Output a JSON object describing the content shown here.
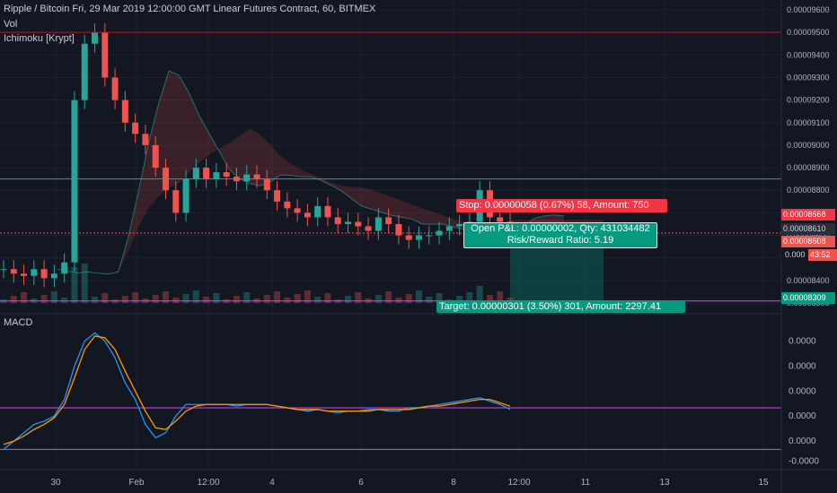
{
  "header": {
    "title": "Ripple / Bitcoin Fri, 29 Mar 2019 12:00:00 GMT Linear Futures Contract, 60, BITMEX",
    "vol_label": "Vol",
    "ichimoku_label": "Ichimoku [Krypt]",
    "macd_label": "MACD"
  },
  "price_axis": {
    "ticks": [
      "0.00009600",
      "0.00009500",
      "0.00009400",
      "0.00009300",
      "0.00009200",
      "0.00009100",
      "0.00009000",
      "0.00008900",
      "0.00008800",
      "0.00008700",
      "0.00008600",
      "0.00008500",
      "0.00008400",
      "0.00008300"
    ]
  },
  "price_labels": {
    "stop": "0.00008668",
    "last": "0.00008610",
    "current": "0.00008608",
    "countdown": "43:52",
    "target": "0.00008309",
    "partial": "0.000"
  },
  "position": {
    "stop_text": "Stop: 0.00000058 (0.67%) 58, Amount: 750",
    "pnl_text": "Open P&L: 0.00000002, Qty: 431034482",
    "rr_text": "Risk/Reward Ratio: 5.19",
    "target_text": "Target: 0.00000301 (3.50%) 301, Amount: 2297.41"
  },
  "macd_axis": {
    "ticks": [
      "0.0000",
      "0.0000",
      "0.0000",
      "0.0000",
      "0.0000",
      "-0.0000"
    ]
  },
  "time_axis": {
    "ticks": [
      "30",
      "Feb",
      "12:00",
      "4",
      "6",
      "8",
      "12:00",
      "11",
      "13",
      "15"
    ]
  },
  "colors": {
    "bg": "#131722",
    "up": "#26a69a",
    "down": "#ef5350",
    "red_line": "#b71c1c",
    "teal_line": "#26a69a",
    "magenta": "#e040fb",
    "macd": "#2196f3",
    "signal": "#ff9800",
    "stop_box": "#f23645",
    "target_box": "#089981"
  },
  "chart_data": {
    "type": "candlestick",
    "title": "Ripple / Bitcoin",
    "interval": "60",
    "exchange": "BITMEX",
    "ylim": [
      8.3e-05,
      9.62e-05
    ],
    "hlines": [
      9.5e-05,
      8.85e-05,
      8.309e-05
    ],
    "position": {
      "entry": 8.61e-05,
      "stop": 8.668e-05,
      "target": 8.309e-05
    },
    "close": [
      8.45e-05,
      8.43e-05,
      8.42e-05,
      8.45e-05,
      8.41e-05,
      8.43e-05,
      8.48e-05,
      9.2e-05,
      9.45e-05,
      9.5e-05,
      9.3e-05,
      9.2e-05,
      9.1e-05,
      9.05e-05,
      9e-05,
      8.9e-05,
      8.8e-05,
      8.7e-05,
      8.85e-05,
      8.9e-05,
      8.85e-05,
      8.88e-05,
      8.86e-05,
      8.84e-05,
      8.87e-05,
      8.85e-05,
      8.8e-05,
      8.75e-05,
      8.72e-05,
      8.7e-05,
      8.68e-05,
      8.73e-05,
      8.68e-05,
      8.65e-05,
      8.66e-05,
      8.64e-05,
      8.62e-05,
      8.68e-05,
      8.65e-05,
      8.6e-05,
      8.58e-05,
      8.6e-05,
      8.6e-05,
      8.62e-05,
      8.64e-05,
      8.65e-05,
      8.66e-05,
      8.8e-05,
      8.68e-05,
      8.66e-05,
      8.63e-05
    ],
    "macd": [
      -2.5e-06,
      -2e-06,
      -1.5e-06,
      -1e-06,
      -8e-07,
      -5e-07,
      5e-07,
      2.5e-06,
      4e-06,
      4.5e-06,
      4e-06,
      3e-06,
      1.5e-06,
      5e-07,
      -1e-06,
      -1.8e-06,
      -1.5e-06,
      -5e-07,
      2e-07,
      2e-07,
      2e-07,
      2e-07,
      2e-07,
      1e-07,
      2e-07,
      2e-07,
      2e-07,
      1e-07,
      0.0,
      -1e-07,
      -2e-07,
      -1e-07,
      -2e-07,
      -3e-07,
      -2e-07,
      -2e-07,
      -1e-07,
      -1e-07,
      -2e-07,
      -2e-07,
      0.0,
      0.0,
      1e-07,
      2e-07,
      3e-07,
      4e-07,
      5e-07,
      6e-07,
      4e-07,
      2e-07,
      -1e-07
    ],
    "signal": [
      -2.2e-06,
      -2e-06,
      -1.7e-06,
      -1.3e-06,
      -1e-06,
      -6e-07,
      2e-07,
      1.8e-06,
      3.5e-06,
      4.3e-06,
      4.2e-06,
      3.5e-06,
      2.2e-06,
      1e-06,
      -2e-07,
      -1.2e-06,
      -1.3e-06,
      -8e-07,
      -2e-07,
      1e-07,
      2e-07,
      2e-07,
      2e-07,
      2e-07,
      2e-07,
      2e-07,
      2e-07,
      1e-07,
      0.0,
      -1e-07,
      -1e-07,
      -1e-07,
      -2e-07,
      -2e-07,
      -2e-07,
      -2e-07,
      -2e-07,
      -1e-07,
      -1e-07,
      -1e-07,
      -1e-07,
      0.0,
      1e-07,
      1e-07,
      2e-07,
      3e-07,
      4e-07,
      5e-07,
      5e-07,
      3e-07,
      1e-07
    ],
    "macd_hlines": [
      0.0,
      -2.5e-06
    ]
  }
}
